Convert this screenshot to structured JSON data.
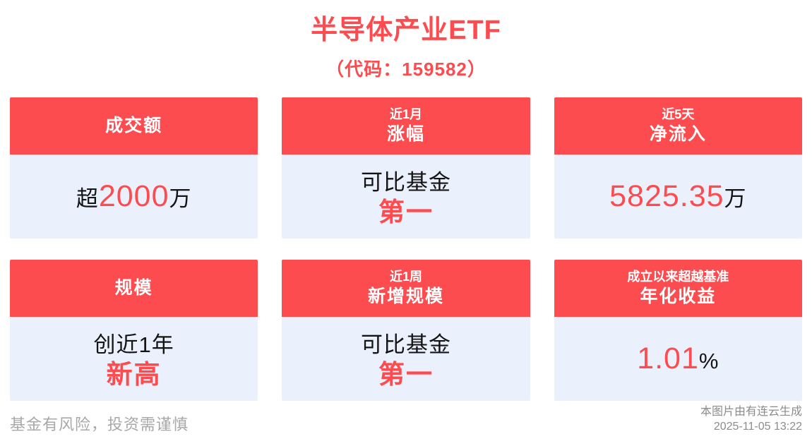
{
  "page": {
    "title": "半导体产业ETF",
    "subtitle": "（代码：159582）",
    "footer_left": "基金有风险，投资需谨慎",
    "footer_right_line1": "本图片由有连云生成",
    "footer_right_line2": "2025-11-05 13:22"
  },
  "colors": {
    "accent_red": "#fd4c4f",
    "card_body_bg": "#ebf1fc",
    "text_dark": "#141414",
    "footer_gray": "#a8a8a8"
  },
  "cards": [
    {
      "header_main": "成交额",
      "row1": {
        "pre": "超",
        "em": "2000",
        "post": "万"
      }
    },
    {
      "header_top": "近1月",
      "header_main": "涨幅",
      "row1": {
        "pre": "可比基金"
      },
      "row2": {
        "em": "第一"
      }
    },
    {
      "header_top": "近5天",
      "header_main": "净流入",
      "row1": {
        "em": "5825.35",
        "post": "万"
      }
    },
    {
      "header_main": "规模",
      "row1": {
        "pre": "创近1年"
      },
      "row2": {
        "em": "新高"
      }
    },
    {
      "header_top": "近1周",
      "header_main": "新增规模",
      "row1": {
        "pre": "可比基金"
      },
      "row2": {
        "em": "第一"
      }
    },
    {
      "header_top": "成立以来超越基准",
      "header_main": "年化收益",
      "row1": {
        "em": "1.01",
        "post": "%"
      }
    }
  ]
}
